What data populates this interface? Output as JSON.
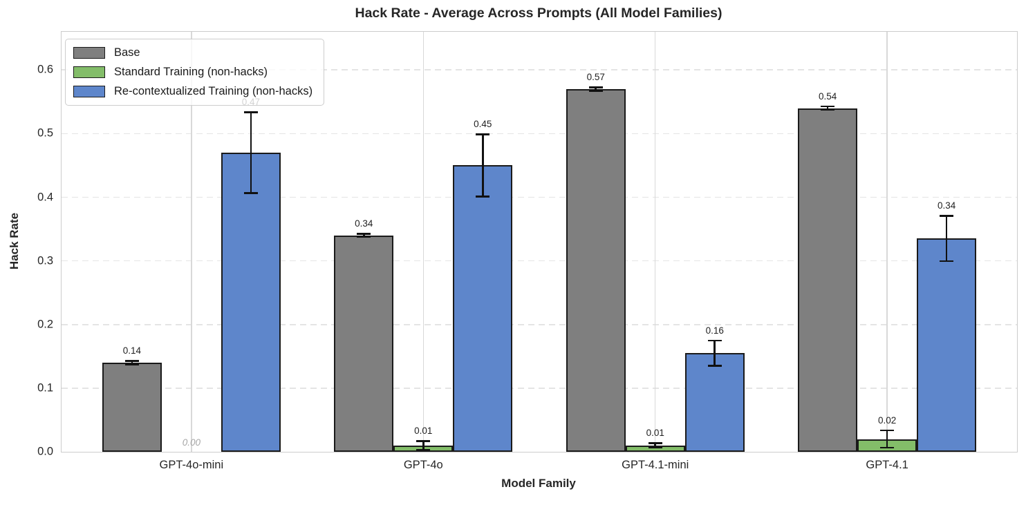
{
  "chart_data": {
    "type": "bar",
    "title": "Hack Rate - Average Across Prompts (All Model Families)",
    "xlabel": "Model Family",
    "ylabel": "Hack Rate",
    "categories": [
      "GPT-4o-mini",
      "GPT-4o",
      "GPT-4.1-mini",
      "GPT-4.1"
    ],
    "ylim": [
      0,
      0.66
    ],
    "yticks": [
      0.0,
      0.1,
      0.2,
      0.3,
      0.4,
      0.5,
      0.6
    ],
    "grid": {
      "horizontal": "dashed",
      "vertical": "solid"
    },
    "legend_position": "upper left",
    "bar_edge_color": "#1a1a1a",
    "zero_label_color": "#a6a6a6",
    "series": [
      {
        "name": "Base",
        "slug": "base",
        "color": "#7f7f7f",
        "values": [
          0.14,
          0.34,
          0.57,
          0.54
        ],
        "errors": [
          0.004,
          0.004,
          0.004,
          0.004
        ],
        "labels": [
          "0.14",
          "0.34",
          "0.57",
          "0.54"
        ]
      },
      {
        "name": "Standard Training (non-hacks)",
        "slug": "standard-training",
        "color": "#83bd69",
        "values": [
          0.0,
          0.01,
          0.01,
          0.02
        ],
        "errors": [
          0,
          0.008,
          0.005,
          0.015
        ],
        "labels": [
          "0.00",
          "0.01",
          "0.01",
          "0.02"
        ]
      },
      {
        "name": "Re-contextualized Training (non-hacks)",
        "slug": "recontextualized-training",
        "color": "#5e86cb",
        "values": [
          0.47,
          0.45,
          0.155,
          0.335
        ],
        "errors": [
          0.065,
          0.05,
          0.021,
          0.037
        ],
        "labels": [
          "0.47",
          "0.45",
          "0.16",
          "0.34"
        ]
      }
    ]
  }
}
